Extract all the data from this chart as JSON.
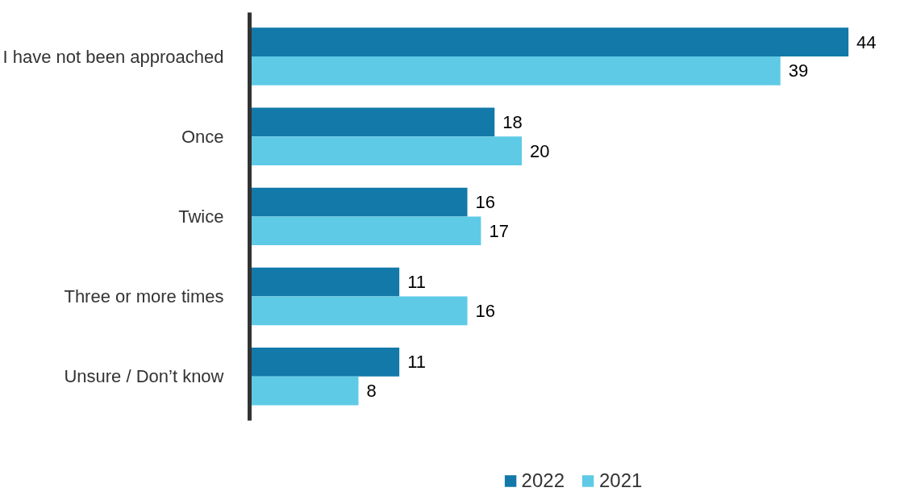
{
  "chart_data": {
    "type": "bar",
    "orientation": "horizontal",
    "categories": [
      "I have not been approached",
      "Once",
      "Twice",
      "Three or more times",
      "Unsure / Don’t know"
    ],
    "series": [
      {
        "name": "2022",
        "color": "#1279a9",
        "values": [
          44,
          18,
          16,
          11,
          11
        ]
      },
      {
        "name": "2021",
        "color": "#5ecae6",
        "values": [
          39,
          20,
          17,
          16,
          8
        ]
      }
    ],
    "tick_labels": "y",
    "data_labels": true,
    "legend": "bottom",
    "grid": false
  }
}
